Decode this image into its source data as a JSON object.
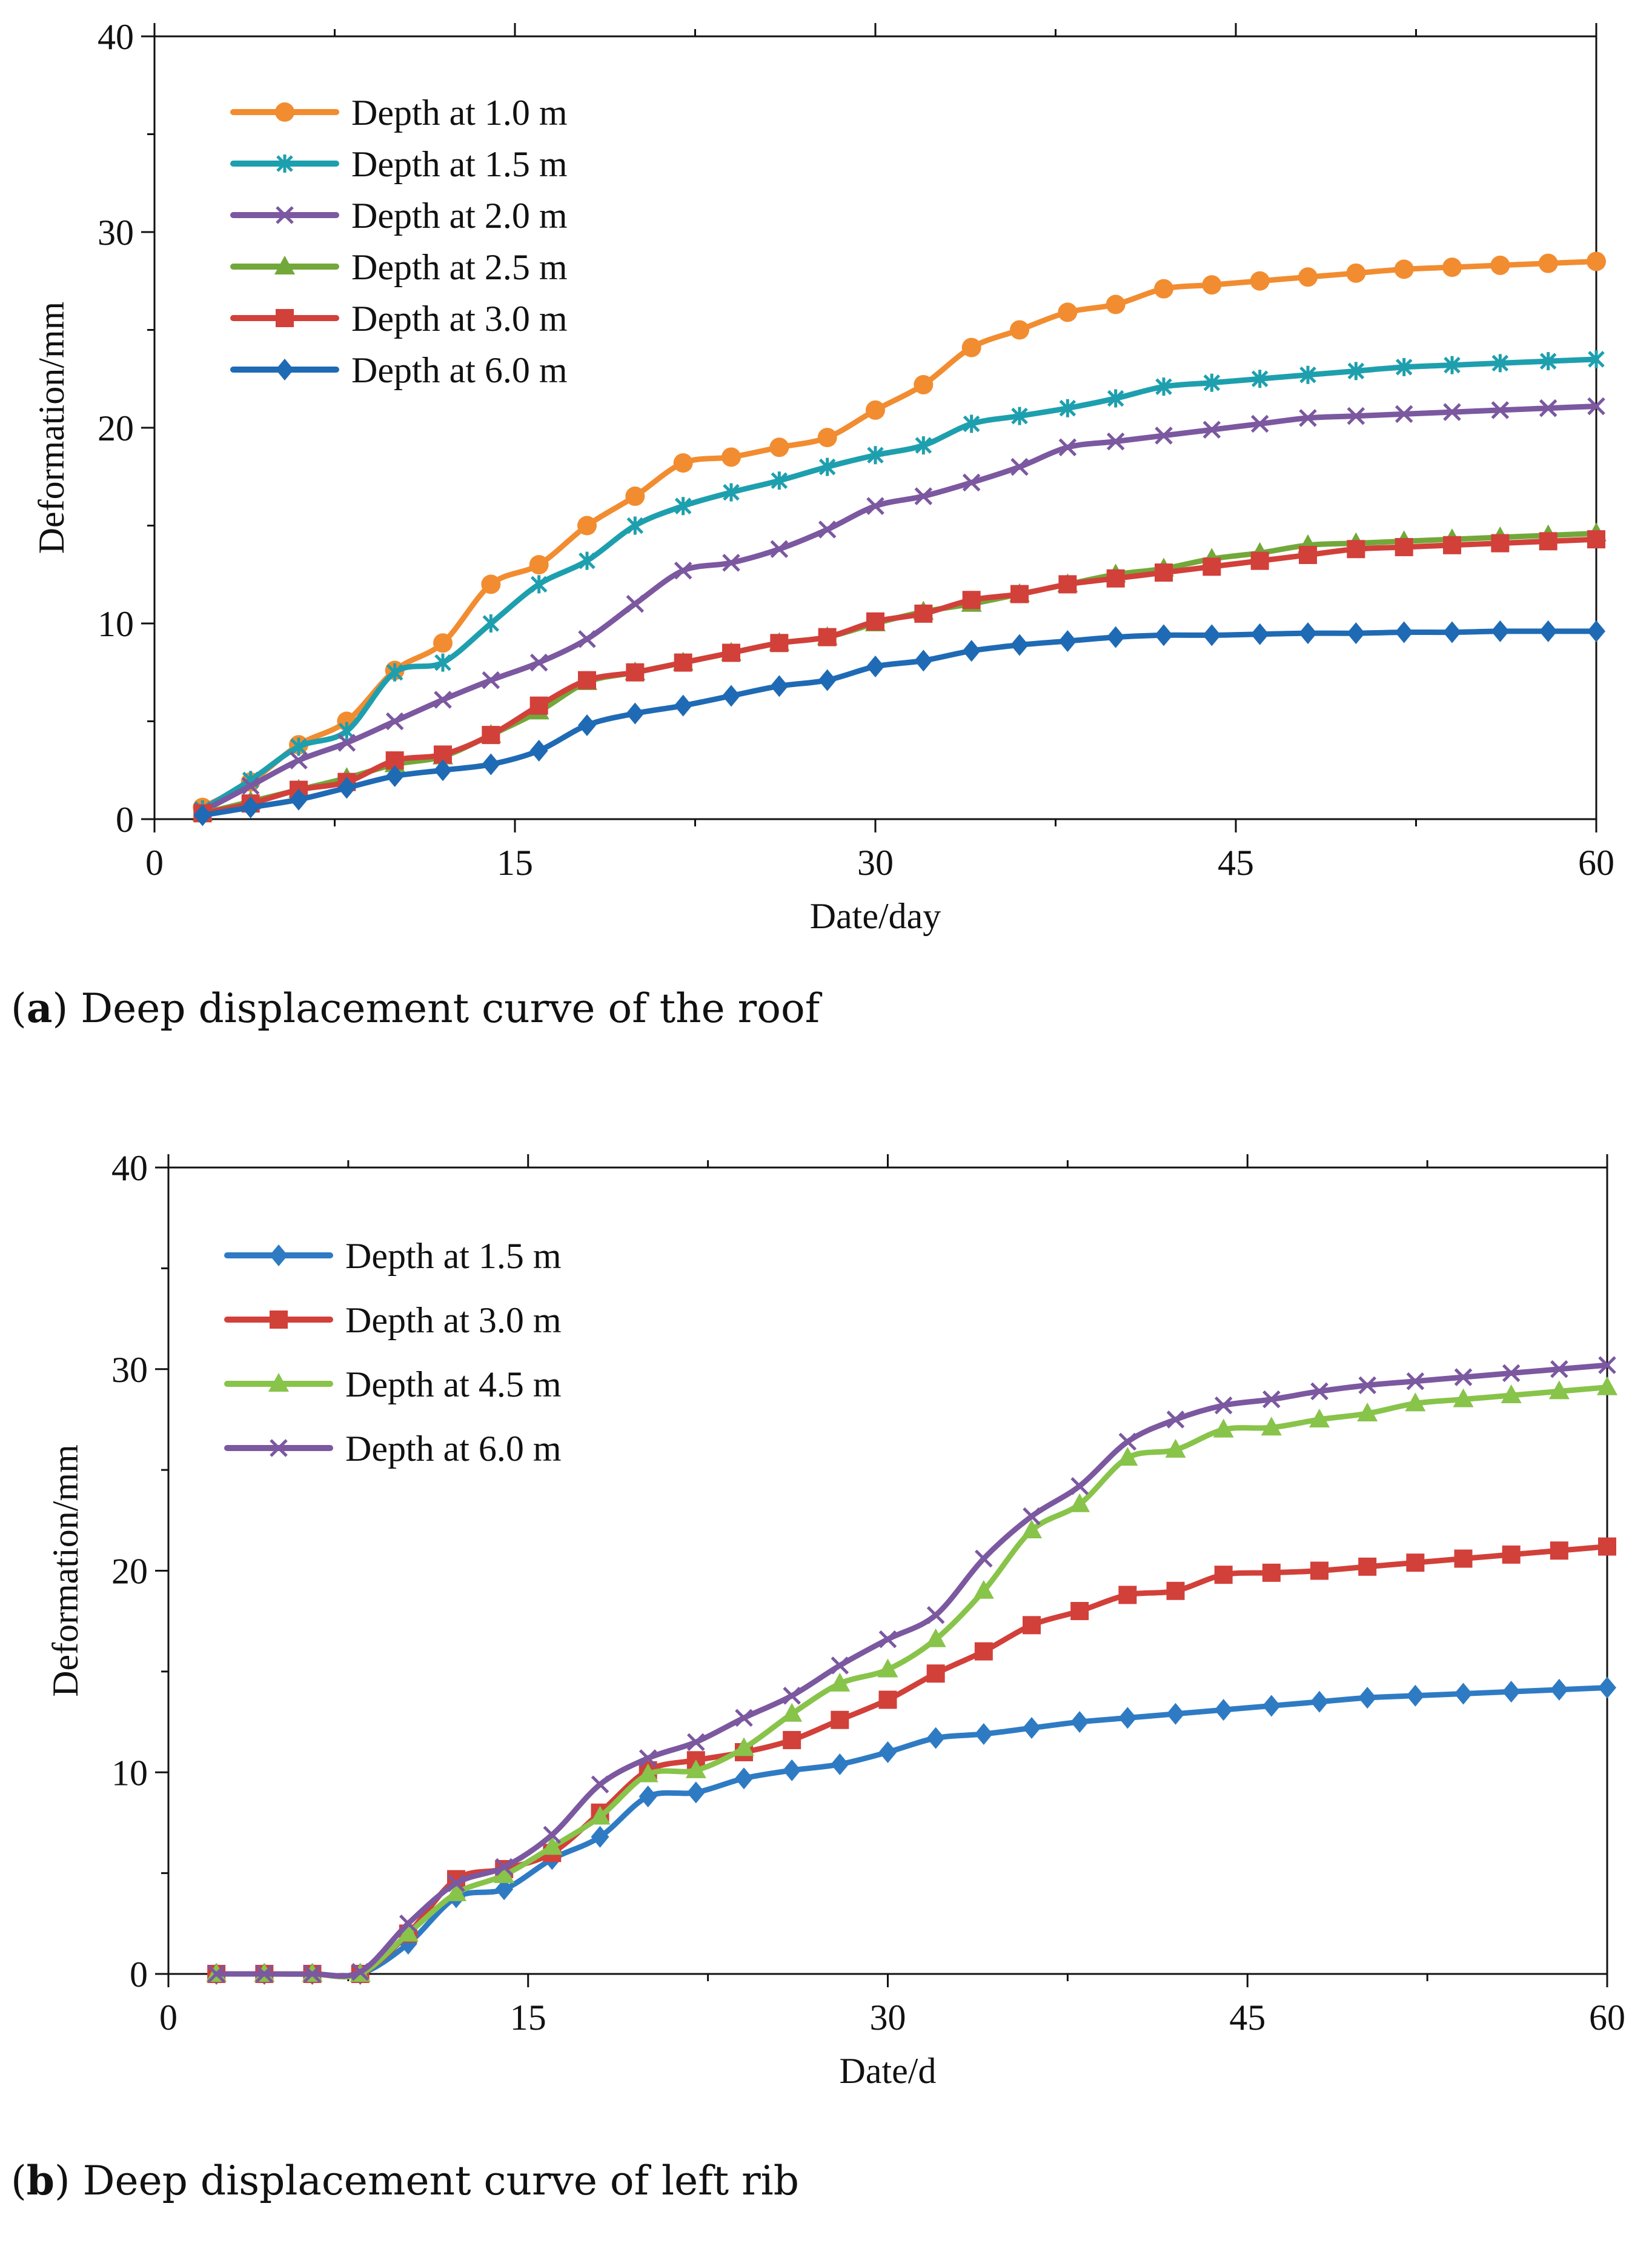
{
  "chart_data": [
    {
      "type": "line",
      "panel": "a",
      "caption_label": "a",
      "caption": "Deep displacement curve of the roof",
      "xlabel": "Date/day",
      "ylabel": "Deformation/mm",
      "xlim": [
        0,
        60
      ],
      "ylim": [
        0,
        40
      ],
      "xticks": [
        0,
        15,
        30,
        45,
        60
      ],
      "yticks": [
        0,
        10,
        20,
        30,
        40
      ],
      "grid": false,
      "legend_position": "top-left",
      "x": [
        2,
        4,
        6,
        8,
        10,
        12,
        14,
        16,
        18,
        20,
        22,
        24,
        26,
        28,
        30,
        32,
        34,
        36,
        38,
        40,
        42,
        44,
        46,
        48,
        50,
        52,
        54,
        56,
        58,
        60
      ],
      "series": [
        {
          "name": "Depth at 1.0 m",
          "color": "#F28C30",
          "marker": "circle",
          "values": [
            0.6,
            1.9,
            3.8,
            5.0,
            7.6,
            9.0,
            12.0,
            13.0,
            15.0,
            16.5,
            18.2,
            18.5,
            19.0,
            19.5,
            20.9,
            22.2,
            24.1,
            25.0,
            25.9,
            26.3,
            27.1,
            27.3,
            27.5,
            27.7,
            27.9,
            28.1,
            28.2,
            28.3,
            28.4,
            28.5
          ]
        },
        {
          "name": "Depth at 1.5 m",
          "color": "#1E9FAE",
          "marker": "asterisk",
          "values": [
            0.5,
            2.0,
            3.7,
            4.5,
            7.5,
            8.0,
            10.0,
            12.0,
            13.2,
            15.0,
            16.0,
            16.7,
            17.3,
            18.0,
            18.6,
            19.1,
            20.2,
            20.6,
            21.0,
            21.5,
            22.1,
            22.3,
            22.5,
            22.7,
            22.9,
            23.1,
            23.2,
            23.3,
            23.4,
            23.5
          ]
        },
        {
          "name": "Depth at 2.0 m",
          "color": "#7B58A0",
          "marker": "x",
          "values": [
            0.4,
            1.7,
            3.0,
            3.9,
            5.0,
            6.1,
            7.1,
            8.0,
            9.2,
            11.0,
            12.7,
            13.1,
            13.8,
            14.8,
            16.0,
            16.5,
            17.2,
            18.0,
            19.0,
            19.3,
            19.6,
            19.9,
            20.2,
            20.5,
            20.6,
            20.7,
            20.8,
            20.9,
            21.0,
            21.1
          ]
        },
        {
          "name": "Depth at 2.5 m",
          "color": "#72A83A",
          "marker": "triangle",
          "values": [
            0.3,
            0.9,
            1.5,
            2.1,
            2.8,
            3.2,
            4.3,
            5.5,
            7.0,
            7.5,
            8.0,
            8.5,
            9.0,
            9.3,
            10.0,
            10.6,
            11.0,
            11.5,
            12.0,
            12.5,
            12.8,
            13.3,
            13.6,
            14.0,
            14.1,
            14.2,
            14.3,
            14.4,
            14.5,
            14.6
          ]
        },
        {
          "name": "Depth at 3.0 m",
          "color": "#D2403A",
          "marker": "square",
          "values": [
            0.3,
            0.8,
            1.5,
            1.9,
            3.0,
            3.3,
            4.3,
            5.8,
            7.1,
            7.5,
            8.0,
            8.5,
            9.0,
            9.3,
            10.1,
            10.5,
            11.2,
            11.5,
            12.0,
            12.3,
            12.6,
            12.9,
            13.2,
            13.5,
            13.8,
            13.9,
            14.0,
            14.1,
            14.2,
            14.3
          ]
        },
        {
          "name": "Depth at 6.0 m",
          "color": "#1F6AB4",
          "marker": "diamond",
          "values": [
            0.2,
            0.6,
            1.0,
            1.6,
            2.2,
            2.5,
            2.8,
            3.5,
            4.8,
            5.4,
            5.8,
            6.3,
            6.8,
            7.1,
            7.8,
            8.1,
            8.6,
            8.9,
            9.1,
            9.3,
            9.4,
            9.4,
            9.45,
            9.5,
            9.5,
            9.55,
            9.55,
            9.6,
            9.6,
            9.6
          ]
        }
      ]
    },
    {
      "type": "line",
      "panel": "b",
      "caption_label": "b",
      "caption": "Deep displacement curve of left rib",
      "xlabel": "Date/d",
      "ylabel": "Deformation/mm",
      "xlim": [
        0,
        60
      ],
      "ylim": [
        0,
        40
      ],
      "xticks": [
        0,
        15,
        30,
        45,
        60
      ],
      "yticks": [
        0,
        10,
        20,
        30,
        40
      ],
      "grid": false,
      "legend_position": "top-left",
      "x": [
        2,
        4,
        6,
        8,
        10,
        12,
        14,
        16,
        18,
        20,
        22,
        24,
        26,
        28,
        30,
        32,
        34,
        36,
        38,
        40,
        42,
        44,
        46,
        48,
        50,
        52,
        54,
        56,
        58,
        60
      ],
      "series": [
        {
          "name": "Depth at 1.5 m",
          "color": "#2E7BC4",
          "marker": "diamond",
          "values": [
            0,
            0,
            0,
            0,
            1.5,
            3.8,
            4.2,
            5.7,
            6.8,
            8.8,
            9.0,
            9.7,
            10.1,
            10.4,
            11.0,
            11.7,
            11.9,
            12.2,
            12.5,
            12.7,
            12.9,
            13.1,
            13.3,
            13.5,
            13.7,
            13.8,
            13.9,
            14.0,
            14.1,
            14.2
          ]
        },
        {
          "name": "Depth at 3.0 m",
          "color": "#D2403A",
          "marker": "square",
          "values": [
            0,
            0,
            0,
            0,
            2.0,
            4.7,
            5.2,
            6.0,
            8.0,
            10.1,
            10.6,
            11.0,
            11.6,
            12.6,
            13.6,
            14.9,
            16.0,
            17.3,
            18.0,
            18.8,
            19.0,
            19.8,
            19.9,
            20.0,
            20.2,
            20.4,
            20.6,
            20.8,
            21.0,
            21.2
          ]
        },
        {
          "name": "Depth at 4.5 m",
          "color": "#88C34A",
          "marker": "triangle",
          "values": [
            0,
            0,
            0,
            0,
            2.0,
            4.0,
            4.9,
            6.3,
            7.8,
            9.9,
            10.1,
            11.2,
            12.9,
            14.4,
            15.1,
            16.6,
            19.0,
            22.0,
            23.3,
            25.6,
            26.0,
            27.0,
            27.1,
            27.5,
            27.8,
            28.3,
            28.5,
            28.7,
            28.9,
            29.1
          ]
        },
        {
          "name": "Depth at 6.0 m",
          "color": "#7B58A0",
          "marker": "x",
          "values": [
            0,
            0,
            0,
            0.1,
            2.5,
            4.5,
            5.3,
            6.9,
            9.4,
            10.7,
            11.5,
            12.7,
            13.8,
            15.3,
            16.6,
            17.8,
            20.6,
            22.7,
            24.2,
            26.4,
            27.5,
            28.2,
            28.5,
            28.9,
            29.2,
            29.4,
            29.6,
            29.8,
            30.0,
            30.2
          ]
        }
      ]
    }
  ]
}
